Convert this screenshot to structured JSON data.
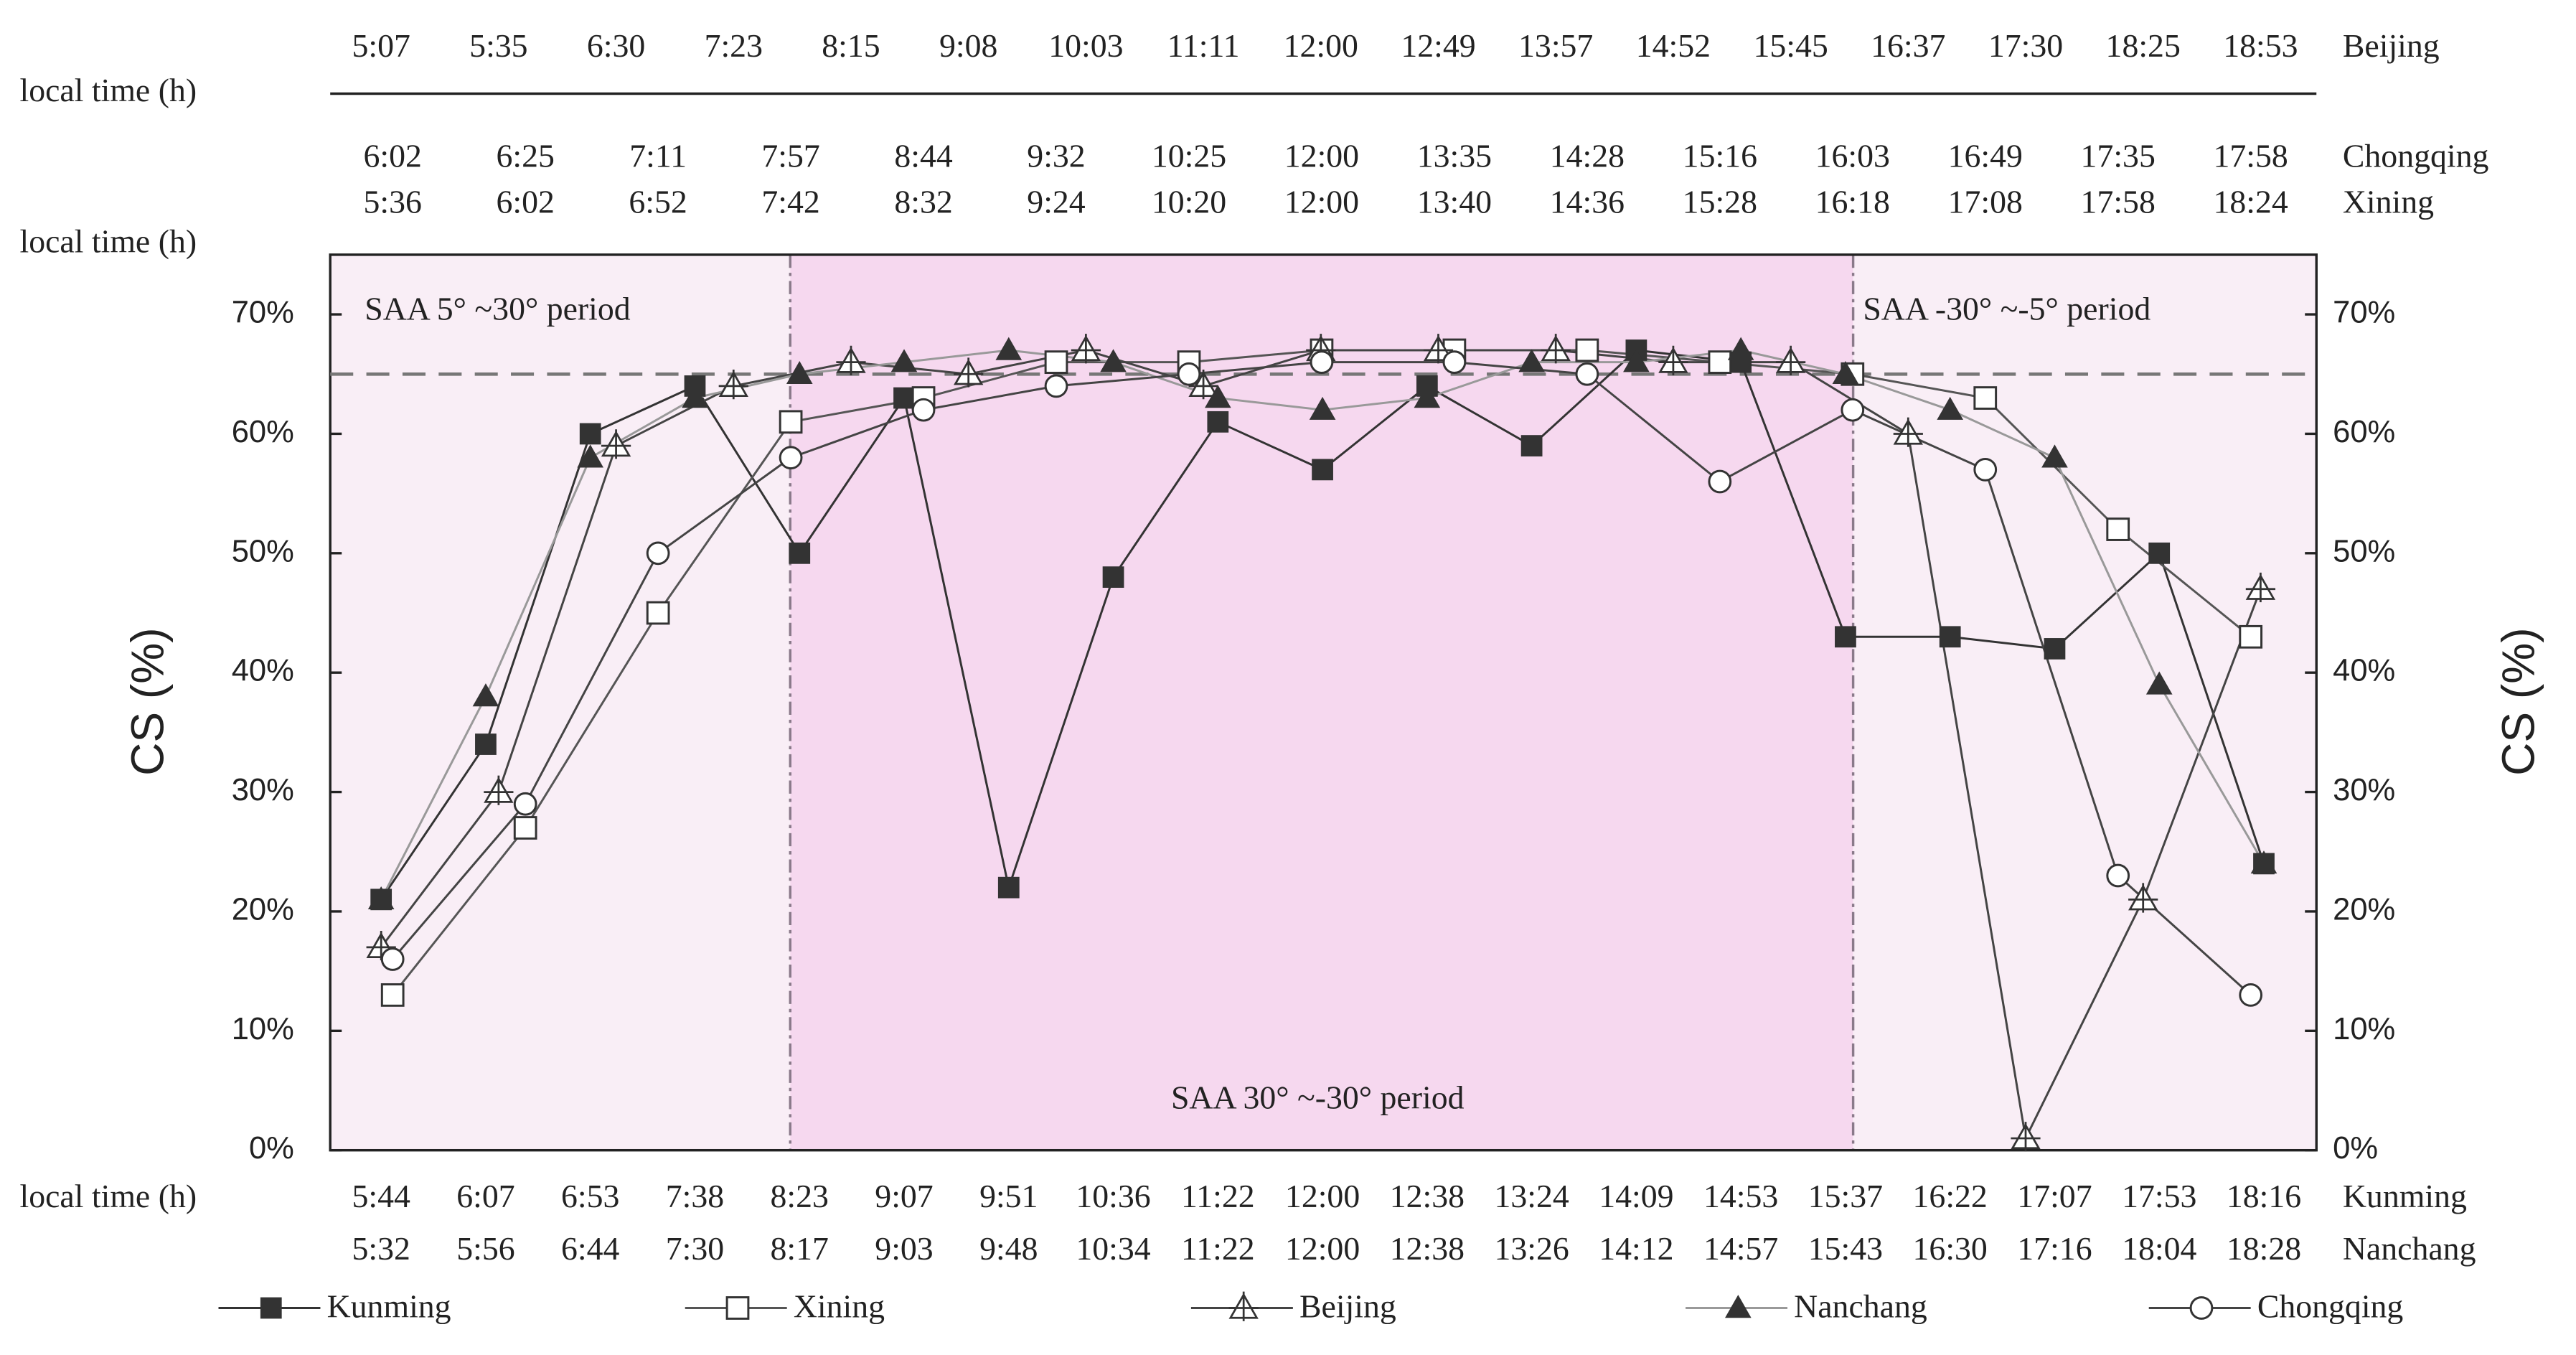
{
  "chart_data": {
    "type": "line",
    "y_label": "CS (%)",
    "time_axis_label": "local time (h)",
    "annotations": [
      "SAA 5° ~30°  period",
      "SAA 30° ~-30°  period",
      "SAA -30° ~-5°  period"
    ],
    "reference_line": 65,
    "ylim": [
      0,
      75
    ],
    "yticks": [
      {
        "value": 0,
        "label": "0%"
      },
      {
        "value": 10,
        "label": "10%"
      },
      {
        "value": 20,
        "label": "20%"
      },
      {
        "value": 30,
        "label": "30%"
      },
      {
        "value": 40,
        "label": "40%"
      },
      {
        "value": 50,
        "label": "50%"
      },
      {
        "value": 60,
        "label": "60%"
      },
      {
        "value": 70,
        "label": "70%"
      }
    ],
    "series": [
      {
        "name": "Kunming",
        "color": "#333333",
        "marker": "square-filled",
        "categories": [
          "5:44",
          "6:07",
          "6:53",
          "7:38",
          "8:23",
          "9:07",
          "9:51",
          "10:36",
          "11:22",
          "12:00",
          "12:38",
          "13:24",
          "14:09",
          "14:53",
          "15:37",
          "16:22",
          "17:07",
          "17:53",
          "18:16"
        ],
        "values": [
          21,
          34,
          60,
          64,
          50,
          63,
          22,
          48,
          61,
          57,
          64,
          59,
          67,
          66,
          43,
          43,
          42,
          50,
          24
        ]
      },
      {
        "name": "Xining",
        "color": "#555555",
        "marker": "square-open",
        "categories": [
          "5:36",
          "6:02",
          "6:52",
          "7:42",
          "8:32",
          "9:24",
          "10:20",
          "12:00",
          "13:40",
          "14:36",
          "15:28",
          "16:18",
          "17:08",
          "17:58",
          "18:24"
        ],
        "values": [
          13,
          27,
          45,
          61,
          63,
          66,
          66,
          67,
          67,
          67,
          66,
          65,
          63,
          52,
          43
        ]
      },
      {
        "name": "Beijing",
        "color": "#444444",
        "marker": "triangle-cross",
        "categories": [
          "5:07",
          "5:35",
          "6:30",
          "7:23",
          "8:15",
          "9:08",
          "10:03",
          "11:11",
          "12:00",
          "12:49",
          "13:57",
          "14:52",
          "15:45",
          "16:37",
          "17:30",
          "18:25",
          "18:53"
        ],
        "values": [
          17,
          30,
          59,
          64,
          66,
          65,
          67,
          64,
          67,
          67,
          67,
          66,
          66,
          60,
          1,
          21,
          47
        ]
      },
      {
        "name": "Nanchang",
        "color": "#999999",
        "marker": "triangle-filled",
        "categories": [
          "5:32",
          "5:56",
          "6:44",
          "7:30",
          "8:17",
          "9:03",
          "9:48",
          "10:34",
          "11:22",
          "12:00",
          "12:38",
          "13:26",
          "14:12",
          "14:57",
          "15:43",
          "16:30",
          "17:16",
          "18:04",
          "18:28"
        ],
        "values": [
          21,
          38,
          58,
          63,
          65,
          66,
          67,
          66,
          63,
          62,
          63,
          66,
          66,
          67,
          65,
          62,
          58,
          39,
          24
        ]
      },
      {
        "name": "Chongqing",
        "color": "#444444",
        "marker": "circle-open",
        "categories": [
          "6:02",
          "6:25",
          "7:11",
          "7:57",
          "8:44",
          "9:32",
          "10:25",
          "12:00",
          "13:35",
          "14:28",
          "15:16",
          "16:03",
          "16:49",
          "17:35",
          "17:58"
        ],
        "values": [
          16,
          29,
          50,
          58,
          62,
          64,
          65,
          66,
          66,
          65,
          56,
          62,
          57,
          23,
          13
        ]
      }
    ]
  }
}
